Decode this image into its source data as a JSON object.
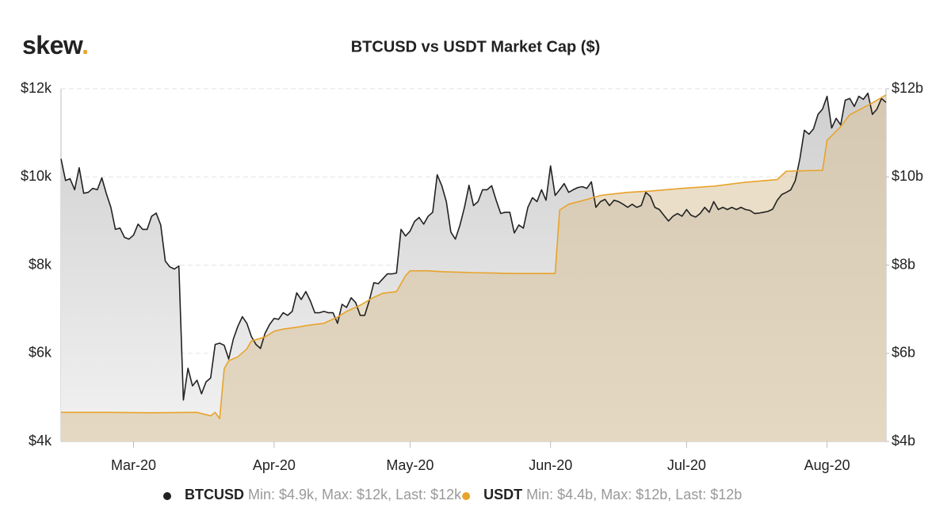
{
  "logo": "skew.",
  "chart_data": {
    "type": "line",
    "title": "BTCUSD vs USDT Market Cap ($)",
    "xlim": [
      0,
      182
    ],
    "xticks": [
      {
        "value": 16,
        "label": "Mar-20"
      },
      {
        "value": 47,
        "label": "Apr-20"
      },
      {
        "value": 77,
        "label": "May-20"
      },
      {
        "value": 108,
        "label": "Jun-20"
      },
      {
        "value": 138,
        "label": "Jul-20"
      },
      {
        "value": 169,
        "label": "Aug-20"
      }
    ],
    "ylim": [
      4000,
      12000
    ],
    "yticks": [
      {
        "value": 4000,
        "label": "$4k"
      },
      {
        "value": 6000,
        "label": "$6k"
      },
      {
        "value": 8000,
        "label": "$8k"
      },
      {
        "value": 10000,
        "label": "$10k"
      },
      {
        "value": 12000,
        "label": "$12k"
      }
    ],
    "y2lim": [
      4000000000.0,
      12000000000.0
    ],
    "y2ticks": [
      {
        "value": 4000000000.0,
        "label": "$4b"
      },
      {
        "value": 6000000000.0,
        "label": "$6b"
      },
      {
        "value": 8000000000.0,
        "label": "$8b"
      },
      {
        "value": 10000000000.0,
        "label": "$10b"
      },
      {
        "value": 12000000000.0,
        "label": "$12b"
      }
    ],
    "grid": true,
    "legend": "bottom",
    "series": [
      {
        "name": "BTCUSD",
        "summary": "Min: $4.9k, Max: $12k, Last: $12k",
        "color": "#222222",
        "fill": "#d4d4d4",
        "x": [
          0,
          1,
          2,
          3,
          4,
          5,
          6,
          7,
          8,
          9,
          10,
          11,
          12,
          13,
          14,
          15,
          16,
          17,
          18,
          19,
          20,
          21,
          22,
          23,
          24,
          25,
          26,
          27,
          28,
          29,
          30,
          31,
          32,
          33,
          34,
          35,
          36,
          37,
          38,
          39,
          40,
          41,
          42,
          43,
          44,
          45,
          46,
          47,
          48,
          49,
          50,
          51,
          52,
          53,
          54,
          55,
          56,
          57,
          58,
          59,
          60,
          61,
          62,
          63,
          64,
          65,
          66,
          67,
          68,
          69,
          70,
          71,
          72,
          73,
          74,
          75,
          76,
          77,
          78,
          79,
          80,
          81,
          82,
          83,
          84,
          85,
          86,
          87,
          88,
          89,
          90,
          91,
          92,
          93,
          94,
          95,
          96,
          97,
          98,
          99,
          100,
          101,
          102,
          103,
          104,
          105,
          106,
          107,
          108,
          109,
          110,
          111,
          112,
          113,
          114,
          115,
          116,
          117,
          118,
          119,
          120,
          121,
          122,
          123,
          124,
          125,
          126,
          127,
          128,
          129,
          130,
          131,
          132,
          133,
          134,
          135,
          136,
          137,
          138,
          139,
          140,
          141,
          142,
          143,
          144,
          145,
          146,
          147,
          148,
          149,
          150,
          151,
          152,
          153,
          154,
          155,
          156,
          157,
          158,
          159,
          160,
          161,
          162,
          163,
          164,
          165,
          166,
          167,
          168,
          169,
          170,
          171,
          172,
          173,
          174,
          175,
          176,
          177,
          178,
          179,
          180,
          181,
          182
        ],
        "values": [
          10410,
          9920,
          9960,
          9710,
          10210,
          9630,
          9650,
          9740,
          9710,
          9980,
          9620,
          9310,
          8810,
          8840,
          8630,
          8590,
          8680,
          8930,
          8810,
          8810,
          9110,
          9180,
          8910,
          8090,
          7960,
          7910,
          7980,
          4940,
          5660,
          5260,
          5390,
          5080,
          5350,
          5440,
          6200,
          6230,
          6180,
          5870,
          6320,
          6610,
          6830,
          6680,
          6380,
          6200,
          6110,
          6450,
          6650,
          6790,
          6770,
          6920,
          6860,
          6950,
          7370,
          7220,
          7400,
          7190,
          6920,
          6920,
          6950,
          6920,
          6920,
          6680,
          7110,
          7040,
          7260,
          7150,
          6860,
          6860,
          7190,
          7600,
          7580,
          7690,
          7800,
          7800,
          7820,
          8810,
          8660,
          8770,
          8990,
          9080,
          8930,
          9110,
          9200,
          10050,
          9800,
          9440,
          8750,
          8590,
          8900,
          9310,
          9810,
          9350,
          9440,
          9710,
          9710,
          9800,
          9470,
          9170,
          9200,
          9200,
          8730,
          8910,
          8840,
          9310,
          9530,
          9440,
          9710,
          9470,
          10250,
          9580,
          9710,
          9850,
          9650,
          9710,
          9760,
          9780,
          9740,
          9890,
          9310,
          9440,
          9490,
          9350,
          9470,
          9440,
          9380,
          9310,
          9380,
          9310,
          9350,
          9650,
          9560,
          9310,
          9260,
          9130,
          9000,
          9110,
          9170,
          9110,
          9260,
          9130,
          9090,
          9170,
          9310,
          9200,
          9440,
          9260,
          9310,
          9260,
          9310,
          9260,
          9310,
          9260,
          9240,
          9170,
          9180,
          9200,
          9220,
          9270,
          9470,
          9600,
          9650,
          9710,
          9920,
          10410,
          11060,
          10970,
          11090,
          11420,
          11540,
          11830,
          11110,
          11330,
          11180,
          11740,
          11780,
          11600,
          11830,
          11760,
          11900,
          11420,
          11540,
          11780,
          11690
        ]
      },
      {
        "name": "USDT",
        "summary": "Min: $4.4b, Max: $12b, Last: $12b",
        "color": "#e8a32b",
        "fill": "#d9c29a",
        "axis": "y2",
        "x": [
          0,
          10,
          20,
          30,
          33,
          34,
          35,
          36,
          37,
          39,
          41,
          42,
          45,
          47,
          49,
          52,
          55,
          58,
          61,
          63,
          66,
          69,
          71,
          74,
          76,
          77,
          81,
          84,
          91,
          100,
          109,
          110,
          112,
          116,
          119,
          125,
          130,
          137,
          144,
          151,
          158,
          160,
          168,
          169,
          172,
          174,
          179,
          182
        ],
        "values": [
          4660000000.0,
          4660000000.0,
          4650000000.0,
          4660000000.0,
          4580000000.0,
          4660000000.0,
          4520000000.0,
          5650000000.0,
          5830000000.0,
          5920000000.0,
          6100000000.0,
          6280000000.0,
          6370000000.0,
          6500000000.0,
          6550000000.0,
          6590000000.0,
          6640000000.0,
          6680000000.0,
          6820000000.0,
          6950000000.0,
          7090000000.0,
          7270000000.0,
          7360000000.0,
          7400000000.0,
          7760000000.0,
          7870000000.0,
          7870000000.0,
          7850000000.0,
          7830000000.0,
          7810000000.0,
          7810000000.0,
          9250000000.0,
          9380000000.0,
          9490000000.0,
          9580000000.0,
          9650000000.0,
          9680000000.0,
          9740000000.0,
          9790000000.0,
          9880000000.0,
          9940000000.0,
          10130000000.0,
          10150000000.0,
          10830000000.0,
          11140000000.0,
          11410000000.0,
          11680000000.0,
          11860000000.0
        ]
      }
    ]
  }
}
